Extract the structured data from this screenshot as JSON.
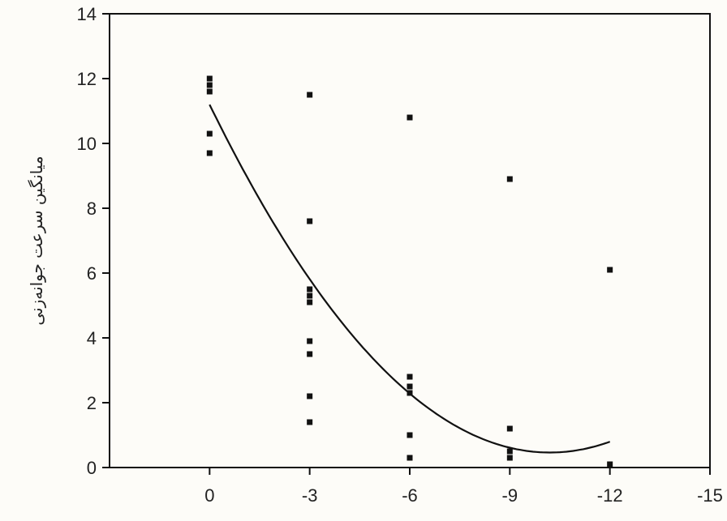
{
  "chart_data": {
    "type": "scatter",
    "title": "",
    "xlabel": "",
    "ylabel": "میانگین سرعت جوانه‌زنی",
    "xlim": [
      3,
      -15
    ],
    "ylim": [
      0,
      14
    ],
    "x_ticks": [
      0,
      -3,
      -6,
      -9,
      -12,
      -15
    ],
    "x_tick_labels": [
      "0",
      "-3",
      "-6",
      "-9",
      "-12",
      "-15"
    ],
    "y_ticks": [
      0,
      2,
      4,
      6,
      8,
      10,
      12,
      14
    ],
    "y_tick_labels": [
      "0",
      "2",
      "4",
      "6",
      "8",
      "10",
      "12",
      "14"
    ],
    "grid": false,
    "colors": {
      "background": "#fdfcf8",
      "ink": "#111111"
    },
    "points": [
      {
        "x": 0,
        "y": 12.0
      },
      {
        "x": 0,
        "y": 11.8
      },
      {
        "x": 0,
        "y": 11.6
      },
      {
        "x": 0,
        "y": 10.3
      },
      {
        "x": 0,
        "y": 9.7
      },
      {
        "x": -3,
        "y": 11.5
      },
      {
        "x": -3,
        "y": 7.6
      },
      {
        "x": -3,
        "y": 5.5
      },
      {
        "x": -3,
        "y": 5.3
      },
      {
        "x": -3,
        "y": 5.1
      },
      {
        "x": -3,
        "y": 3.9
      },
      {
        "x": -3,
        "y": 3.5
      },
      {
        "x": -3,
        "y": 2.2
      },
      {
        "x": -3,
        "y": 1.4
      },
      {
        "x": -6,
        "y": 10.8
      },
      {
        "x": -6,
        "y": 2.8
      },
      {
        "x": -6,
        "y": 2.5
      },
      {
        "x": -6,
        "y": 2.3
      },
      {
        "x": -6,
        "y": 1.0
      },
      {
        "x": -6,
        "y": 0.3
      },
      {
        "x": -9,
        "y": 8.9
      },
      {
        "x": -9,
        "y": 1.2
      },
      {
        "x": -9,
        "y": 0.5
      },
      {
        "x": -9,
        "y": 0.3
      },
      {
        "x": -12,
        "y": 6.1
      },
      {
        "x": -12,
        "y": 0.1
      }
    ],
    "fit_curve": {
      "type": "quadratic",
      "x": [
        0,
        -3,
        -6,
        -9,
        -12
      ],
      "y": [
        11.2,
        5.8,
        2.3,
        0.6,
        0.8
      ]
    }
  }
}
